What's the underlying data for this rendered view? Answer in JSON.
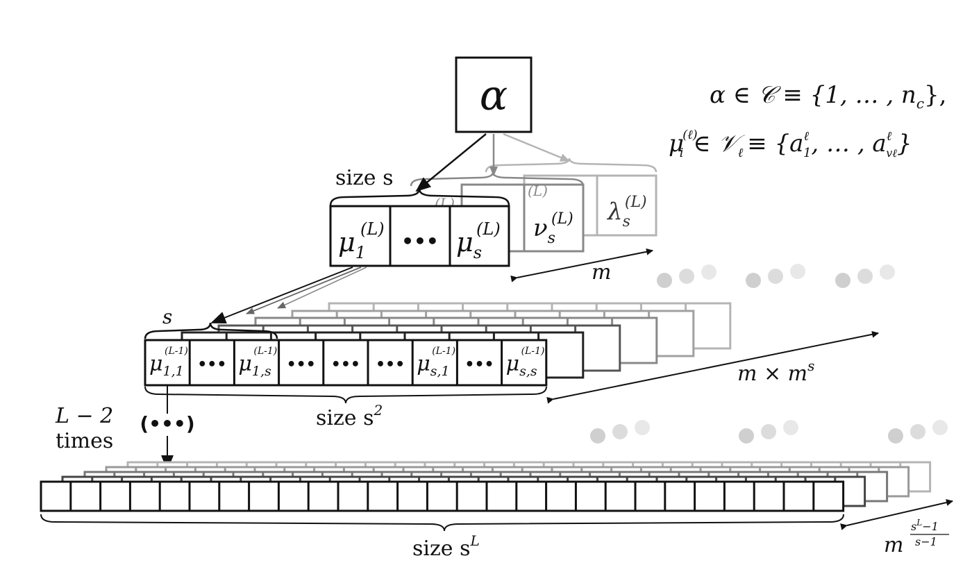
{
  "root": {
    "symbol": "α"
  },
  "definitions": {
    "line1": "α ∈ 𝒞 ≡ {1, … , n",
    "line1_sub": "c",
    "line1_end": "},",
    "line2_mu": "μ",
    "line2_sup": "(ℓ)",
    "line2_sub": "i",
    "line2_rest": "∈ 𝒱",
    "line2_sub2": "ℓ",
    "line2_set": "≡ {a",
    "line2_a_sup": "ℓ",
    "line2_a_sub": "1",
    "line2_mid": ", … , a",
    "line2_a2_sup": "ℓ",
    "line2_a2_sub": "vℓ",
    "line2_end": "}"
  },
  "level1": {
    "size_label": "size s",
    "cells": [
      {
        "base": "μ",
        "sub": "1",
        "sup": "(L)"
      },
      {
        "dots": "•••"
      },
      {
        "base": "μ",
        "sub": "s",
        "sup": "(L)"
      }
    ],
    "shadow_labels": [
      {
        "base": "ν",
        "sub": "s",
        "sup": "(L)"
      },
      {
        "base": "λ",
        "sub": "s",
        "sup": "(L)"
      }
    ],
    "count_label": "m"
  },
  "level2": {
    "size_top_label": "s",
    "cells": [
      {
        "base": "μ",
        "sub": "1,1",
        "sup": "(L-1)"
      },
      {
        "dots": "•••"
      },
      {
        "base": "μ",
        "sub": "1,s",
        "sup": "(L-1)"
      },
      {
        "dots": "•••"
      },
      {
        "dots": "•••"
      },
      {
        "dots": "•••"
      },
      {
        "base": "μ",
        "sub": "s,1",
        "sup": "(L-1)"
      },
      {
        "dots": "•••"
      },
      {
        "base": "μ",
        "sub": "s,s",
        "sup": "(L-1)"
      }
    ],
    "size_label_main": "size s",
    "size_label_sup": "2",
    "count_main": "m × m",
    "count_sup": "s"
  },
  "ellipsis": {
    "repeat_label_1": "L − 2",
    "repeat_label_2": "times",
    "marker": "(•••)"
  },
  "level3": {
    "cell_count": 27,
    "size_label_main": "size s",
    "size_label_sup": "L",
    "count_base": "m",
    "count_num": "s",
    "count_num_sup": "L",
    "count_num_rest": "−1",
    "count_den": "s−1"
  },
  "colors": {
    "ink": "#111111",
    "grey1": "#555555",
    "grey2": "#888888",
    "grey3": "#b4b4b4",
    "dot1": "#cfcfcf",
    "dot2": "#dcdcdc",
    "dot3": "#e8e8e8"
  }
}
